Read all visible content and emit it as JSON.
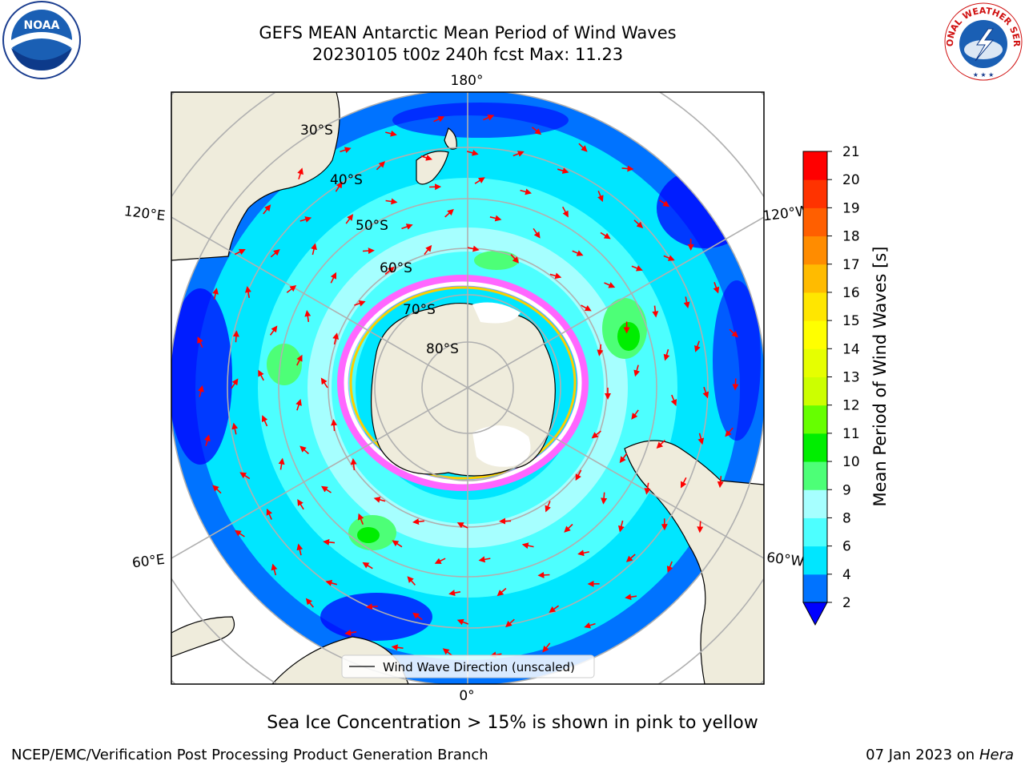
{
  "title": {
    "line1": "GEFS MEAN Antarctic Mean Period of Wind Waves",
    "line2": "20230105 t00z 240h fcst   Max: 11.23"
  },
  "map": {
    "projection": "south-polar-stereographic",
    "longitude_labels": [
      "180°",
      "120°E",
      "120°W",
      "60°E",
      "60°W",
      "0°"
    ],
    "latitude_labels": [
      "30°S",
      "40°S",
      "50°S",
      "60°S",
      "70°S",
      "80°S"
    ],
    "legend_label": "Wind Wave Direction (unscaled)",
    "colors": {
      "land": "#efecdc",
      "ocean_deep_blue": "#0000ff",
      "arrow": "#ff0000",
      "sea_ice": "#ff66ff",
      "grid": "#b0b0b0"
    }
  },
  "colorbar": {
    "label": "Mean Period of Wind Waves [s]",
    "ticks": [
      "2",
      "4",
      "6",
      "8",
      "9",
      "10",
      "11",
      "12",
      "13",
      "14",
      "15",
      "16",
      "17",
      "18",
      "19",
      "20",
      "21"
    ],
    "colors": [
      "#0073ff",
      "#00e6ff",
      "#4dffff",
      "#a6ffff",
      "#4dff77",
      "#00ee00",
      "#66ff00",
      "#ccff00",
      "#e6ff00",
      "#ffff00",
      "#ffe600",
      "#ffbb00",
      "#ff8c00",
      "#ff5f00",
      "#ff3300",
      "#ff0000"
    ],
    "extend_low_color": "#0000ff"
  },
  "footer": {
    "note": "Sea Ice Concentration > 15% is shown in pink to yellow",
    "credit": "NCEP/EMC/Verification Post Processing Product Generation Branch",
    "date": "07 Jan 2023 on ",
    "machine": "Hera"
  },
  "logos": {
    "noaa": "NOAA",
    "nws_arc": "NATIONAL WEATHER SERVICE"
  }
}
